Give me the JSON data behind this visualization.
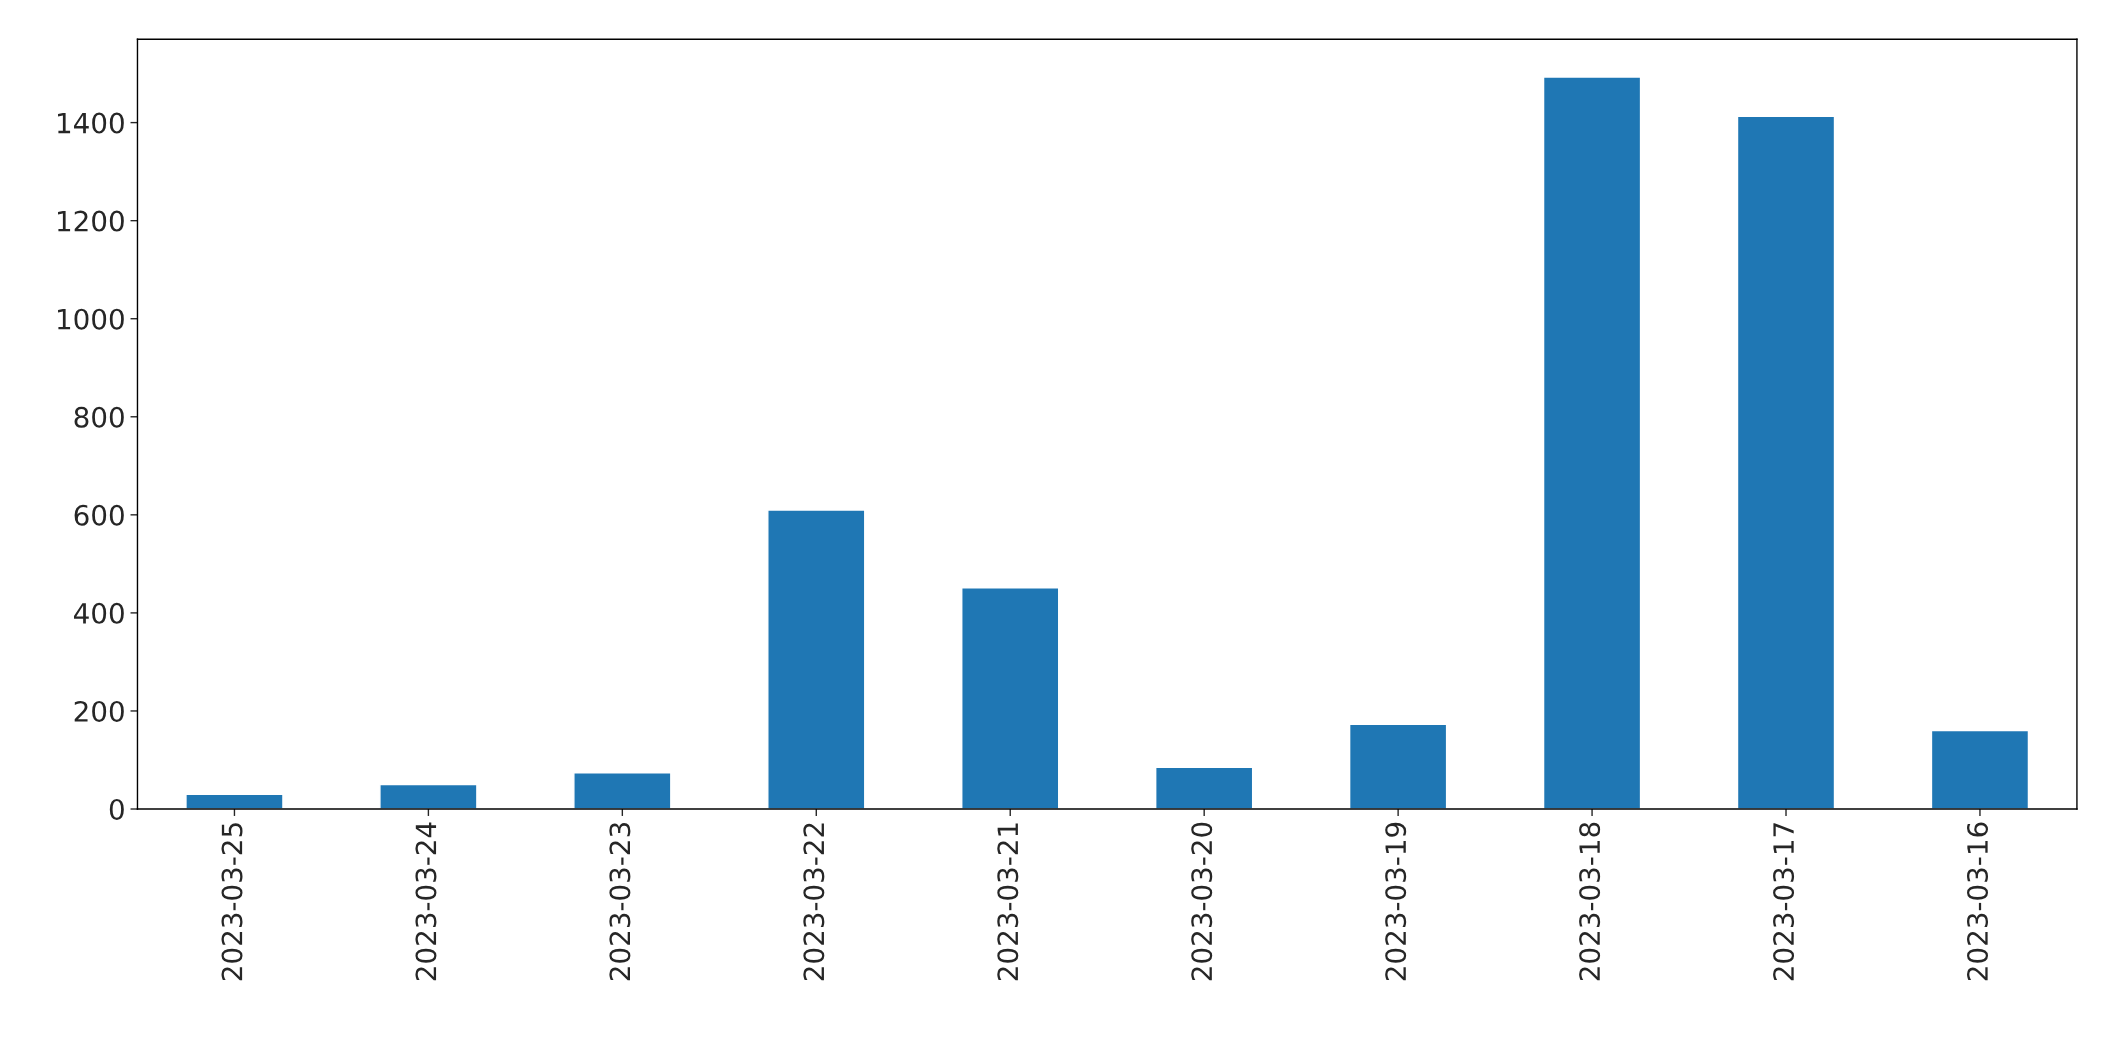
{
  "chart_data": {
    "type": "bar",
    "categories": [
      "2023-03-25",
      "2023-03-24",
      "2023-03-23",
      "2023-03-22",
      "2023-03-21",
      "2023-03-20",
      "2023-03-19",
      "2023-03-18",
      "2023-03-17",
      "2023-03-16"
    ],
    "values": [
      30,
      50,
      74,
      610,
      451,
      85,
      173,
      1493,
      1413,
      160
    ],
    "color": "#1f77b4",
    "ylim": [
      0,
      1570
    ],
    "yticks": [
      0,
      200,
      400,
      600,
      800,
      1000,
      1200,
      1400
    ],
    "grid": false,
    "legend": false
  }
}
